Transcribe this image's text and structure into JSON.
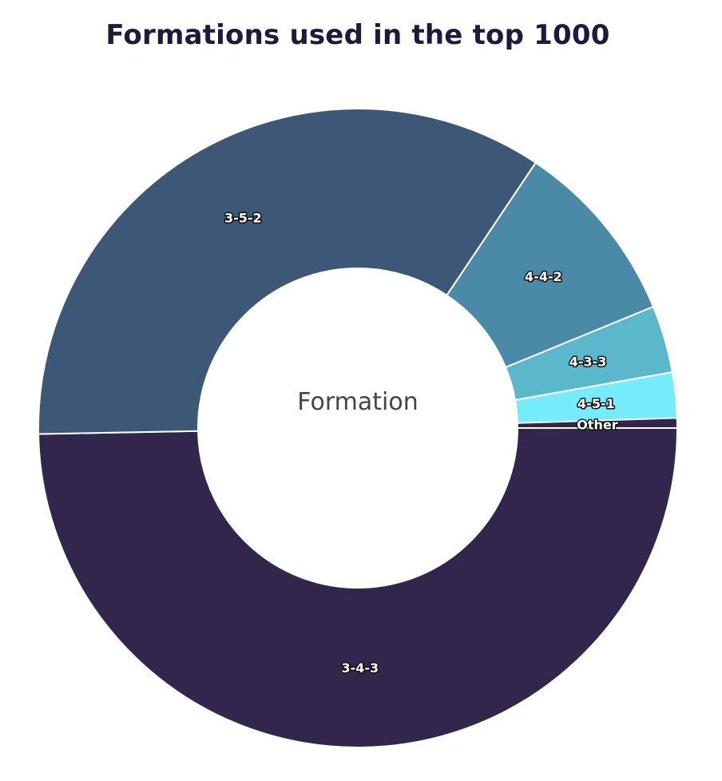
{
  "chart_data": {
    "type": "pie",
    "variant": "donut",
    "title": "Formations used in the top 1000",
    "center_label": "Formation",
    "slices": [
      {
        "label": "3-4-3",
        "value": 49.7,
        "color": "#33264c"
      },
      {
        "label": "3-5-2",
        "value": 34.7,
        "color": "#3d5876"
      },
      {
        "label": "4-4-2",
        "value": 9.4,
        "color": "#4a8aa6"
      },
      {
        "label": "4-3-3",
        "value": 3.4,
        "color": "#5bb7cc"
      },
      {
        "label": "4-5-1",
        "value": 2.3,
        "color": "#76ebfa"
      },
      {
        "label": "Other",
        "value": 0.5,
        "color": "#33264c"
      }
    ]
  }
}
